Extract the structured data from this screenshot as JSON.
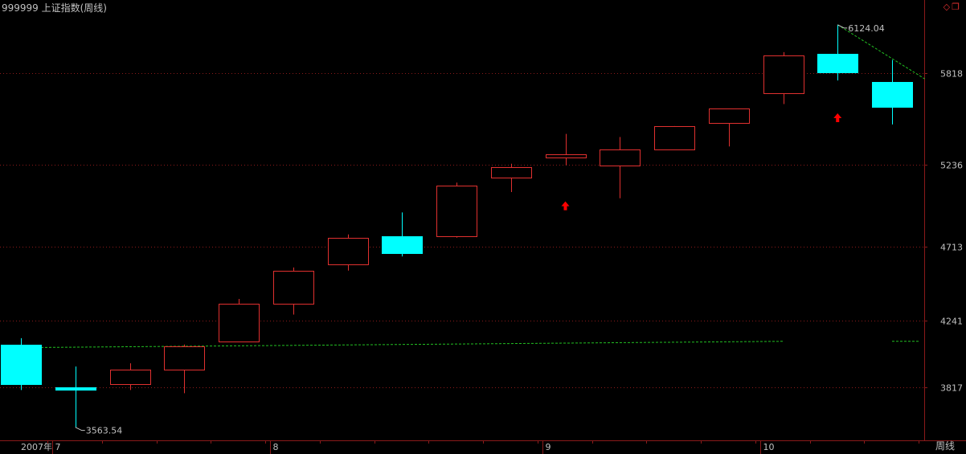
{
  "title": "999999 上证指数(周线)",
  "period_label": "周线",
  "window_icons": {
    "diamond": "◇",
    "restore": "❐"
  },
  "colors": {
    "up": "#e0302f",
    "down": "#00ffff",
    "ma": "#22c022",
    "grid": "#8b1a1a",
    "axis_text": "#c0c0c0",
    "arrow": "#ff0000",
    "background": "#000000"
  },
  "chart_data": {
    "type": "candlestick",
    "ylim": [
      3480,
      6200
    ],
    "yticks": [
      3817,
      4241,
      4713,
      5236,
      5818
    ],
    "x_labels": [
      {
        "index": 0,
        "label": "2007年"
      },
      {
        "index": 1,
        "label": "7"
      },
      {
        "index": 5,
        "label": "8"
      },
      {
        "index": 10,
        "label": "9"
      },
      {
        "index": 14,
        "label": "10"
      }
    ],
    "candles": [
      {
        "open": 4090,
        "high": 4130,
        "low": 3800,
        "close": 3840
      },
      {
        "open": 3820,
        "high": 3950,
        "low": 3563.54,
        "close": 3800
      },
      {
        "open": 3840,
        "high": 3970,
        "low": 3800,
        "close": 3930
      },
      {
        "open": 3930,
        "high": 4090,
        "low": 3780,
        "close": 4080
      },
      {
        "open": 4110,
        "high": 4380,
        "low": 4110,
        "close": 4350
      },
      {
        "open": 4350,
        "high": 4580,
        "low": 4280,
        "close": 4560
      },
      {
        "open": 4600,
        "high": 4790,
        "low": 4560,
        "close": 4770
      },
      {
        "open": 4780,
        "high": 4930,
        "low": 4650,
        "close": 4670
      },
      {
        "open": 4780,
        "high": 5120,
        "low": 4770,
        "close": 5100
      },
      {
        "open": 5150,
        "high": 5240,
        "low": 5060,
        "close": 5220
      },
      {
        "open": 5280,
        "high": 5430,
        "low": 5230,
        "close": 5300
      },
      {
        "open": 5230,
        "high": 5410,
        "low": 5020,
        "close": 5330
      },
      {
        "open": 5330,
        "high": 5480,
        "low": 5330,
        "close": 5480
      },
      {
        "open": 5500,
        "high": 5580,
        "low": 5350,
        "close": 5590
      },
      {
        "open": 5690,
        "high": 5950,
        "low": 5620,
        "close": 5930
      },
      {
        "open": 5940,
        "high": 6124.04,
        "low": 5770,
        "close": 5820
      },
      {
        "open": 5760,
        "high": 5900,
        "low": 5490,
        "close": 5600
      }
    ],
    "annotations": [
      {
        "index": 1,
        "value": 3563.54,
        "label": "3563.54"
      },
      {
        "index": 15,
        "value": 6124.04,
        "label": "6124.04"
      }
    ],
    "arrows": [
      {
        "index": 10,
        "value": 4970
      },
      {
        "index": 15,
        "value": 5530
      }
    ],
    "ma_segments": [
      [
        [
          0,
          4070
        ],
        [
          14,
          4110
        ]
      ],
      [
        [
          16,
          4110
        ],
        [
          16.5,
          4110
        ]
      ]
    ],
    "trend_line": [
      [
        15,
        6124.04
      ],
      [
        16.6,
        5780
      ]
    ]
  }
}
